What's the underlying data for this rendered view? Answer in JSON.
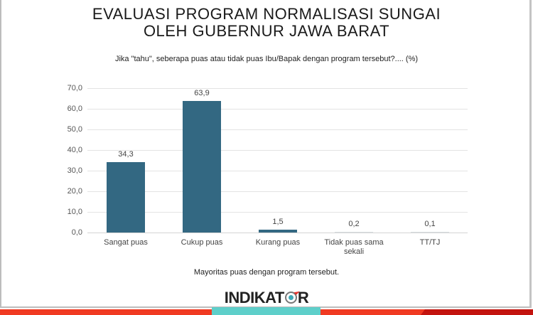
{
  "header": {
    "title_line1": "EVALUASI PROGRAM NORMALISASI SUNGAI",
    "title_line2": "OLEH GUBERNUR JAWA BARAT",
    "question": "Jika \"tahu\", seberapa puas atau tidak puas Ibu/Bapak dengan program tersebut?.... (%)"
  },
  "chart_data": {
    "type": "bar",
    "title": "EVALUASI PROGRAM NORMALISASI SUNGAI OLEH GUBERNUR JAWA BARAT",
    "subtitle": "Jika \"tahu\", seberapa puas atau tidak puas Ibu/Bapak dengan program tersebut?.... (%)",
    "categories": [
      "Sangat puas",
      "Cukup puas",
      "Kurang puas",
      "Tidak puas sama sekali",
      "TT/TJ"
    ],
    "values": [
      34.3,
      63.9,
      1.5,
      0.2,
      0.1
    ],
    "value_labels": [
      "34,3",
      "63,9",
      "1,5",
      "0,2",
      "0,1"
    ],
    "xlabel": "",
    "ylabel": "",
    "ylim": [
      0,
      70
    ],
    "yticks": [
      "0,0",
      "10,0",
      "20,0",
      "30,0",
      "40,0",
      "50,0",
      "60,0",
      "70,0"
    ],
    "grid": true,
    "legend": null,
    "bar_color": "#336882"
  },
  "footer": {
    "note": "Mayoritas puas dengan program tersebut.",
    "logo_prefix": "INDIKAT",
    "logo_suffix": "R",
    "colors": {
      "red": "#f03a22",
      "dark_red": "#c3140f",
      "teal": "#5ecfca"
    }
  }
}
